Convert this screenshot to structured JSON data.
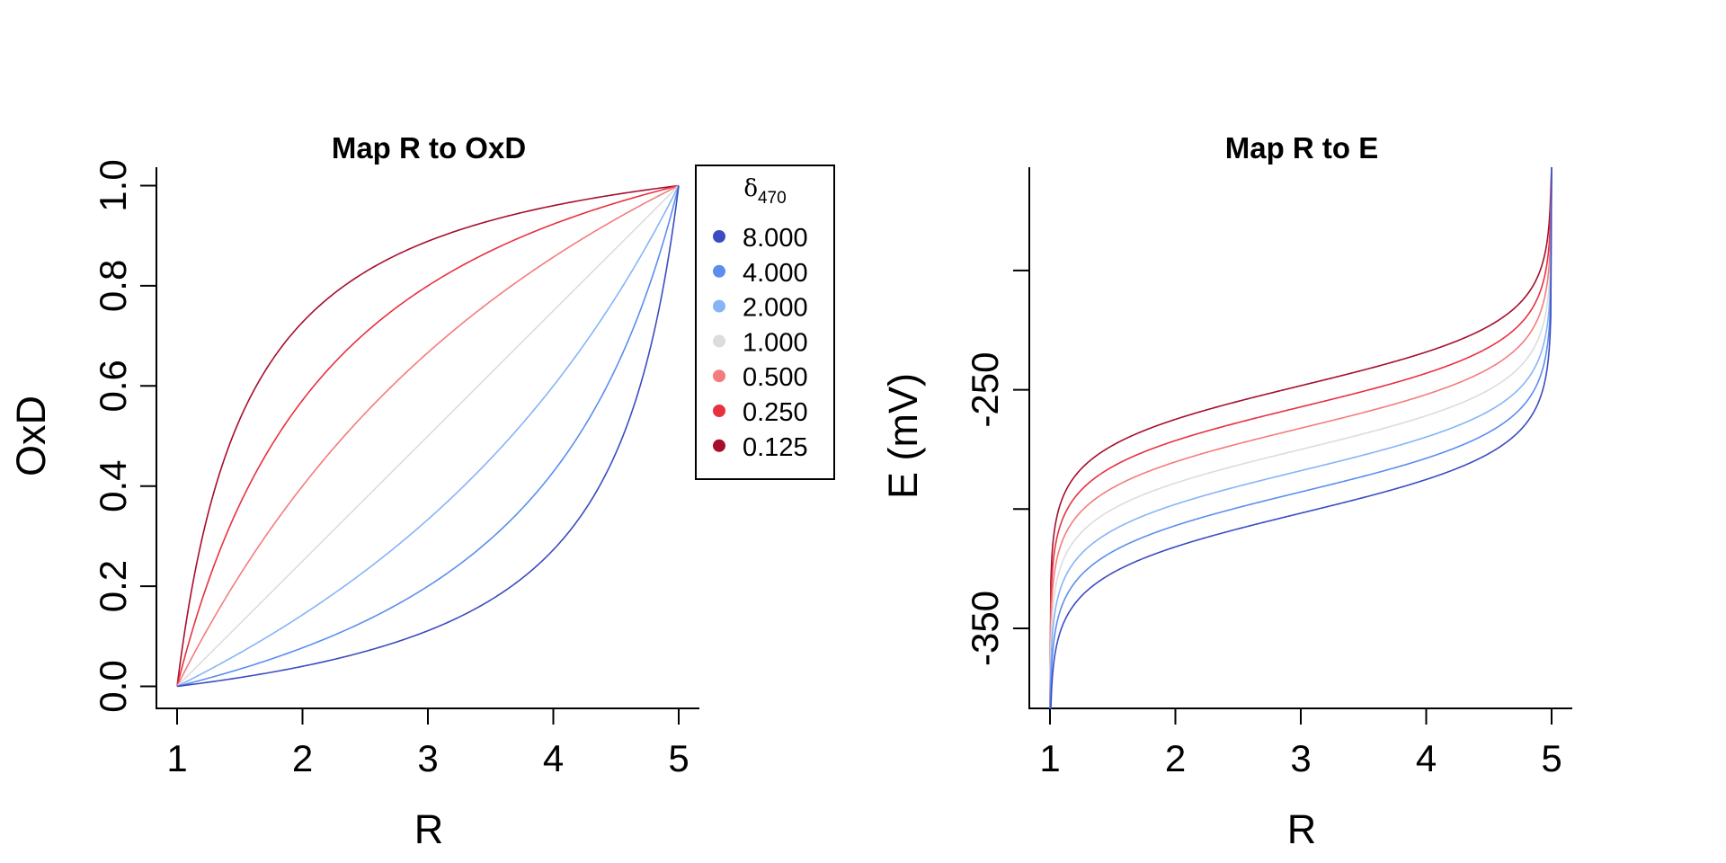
{
  "chart_data": [
    {
      "type": "line",
      "title": "Map R to OxD",
      "xlabel": "R",
      "ylabel": "OxD",
      "xlim": [
        1,
        5
      ],
      "ylim": [
        0,
        1
      ],
      "x_ticks": [
        "1",
        "2",
        "3",
        "4",
        "5"
      ],
      "y_ticks": [
        "0.0",
        "0.2",
        "0.4",
        "0.6",
        "0.8",
        "1.0"
      ],
      "model": "OxD = (R - 1) / ((R - 1) + delta470 * (5 - R))",
      "legend": {
        "title_symbol": "δ",
        "title_subscript": "470",
        "placement": "top-right, outside plot area",
        "entries": [
          "8.000",
          "4.000",
          "2.000",
          "1.000",
          "0.500",
          "0.250",
          "0.125"
        ]
      },
      "series": [
        {
          "name": "8.000",
          "delta": 8,
          "color": "#3b4cc0",
          "x": [
            1,
            1.5,
            2,
            2.5,
            3,
            3.5,
            4,
            4.5,
            5
          ],
          "values": [
            0,
            0.018,
            0.04,
            0.067,
            0.111,
            0.176,
            0.273,
            0.429,
            1
          ]
        },
        {
          "name": "4.000",
          "delta": 4,
          "color": "#5a8ef0",
          "x": [
            1,
            1.5,
            2,
            2.5,
            3,
            3.5,
            4,
            4.5,
            5
          ],
          "values": [
            0,
            0.036,
            0.077,
            0.13,
            0.2,
            0.3,
            0.429,
            0.6,
            1
          ]
        },
        {
          "name": "2.000",
          "delta": 2,
          "color": "#86b4f7",
          "x": [
            1,
            1.5,
            2,
            2.5,
            3,
            3.5,
            4,
            4.5,
            5
          ],
          "values": [
            0,
            0.071,
            0.143,
            0.231,
            0.333,
            0.462,
            0.6,
            0.778,
            1
          ]
        },
        {
          "name": "1.000",
          "delta": 1,
          "color": "#dddcdc",
          "x": [
            1,
            1.5,
            2,
            2.5,
            3,
            3.5,
            4,
            4.5,
            5
          ],
          "values": [
            0,
            0.125,
            0.25,
            0.375,
            0.5,
            0.625,
            0.75,
            0.875,
            1
          ]
        },
        {
          "name": "0.500",
          "delta": 0.5,
          "color": "#f47c7c",
          "x": [
            1,
            1.5,
            2,
            2.5,
            3,
            3.5,
            4,
            4.5,
            5
          ],
          "values": [
            0,
            0.222,
            0.4,
            0.545,
            0.667,
            0.769,
            0.857,
            0.933,
            1
          ]
        },
        {
          "name": "0.250",
          "delta": 0.25,
          "color": "#e8313f",
          "x": [
            1,
            1.5,
            2,
            2.5,
            3,
            3.5,
            4,
            4.5,
            5
          ],
          "values": [
            0,
            0.364,
            0.571,
            0.706,
            0.8,
            0.87,
            0.923,
            0.966,
            1
          ]
        },
        {
          "name": "0.125",
          "delta": 0.125,
          "color": "#a50f2d",
          "x": [
            1,
            1.5,
            2,
            2.5,
            3,
            3.5,
            4,
            4.5,
            5
          ],
          "values": [
            0,
            0.533,
            0.727,
            0.828,
            0.889,
            0.93,
            0.96,
            0.982,
            1
          ]
        }
      ]
    },
    {
      "type": "line",
      "title": "Map R to E",
      "xlabel": "R",
      "ylabel": "E (mV)",
      "xlim": [
        1,
        5
      ],
      "ylim": [
        -365,
        -207
      ],
      "x_ticks": [
        "1",
        "2",
        "3",
        "4",
        "5"
      ],
      "y_ticks": [
        "-350",
        "-250"
      ],
      "y_tick_values": [
        -350,
        -300,
        -250,
        -200
      ],
      "model": "E = -275 - 12.85 * ln((1 - OxD) / OxD)",
      "series": [
        {
          "name": "8.000",
          "color": "#3b4cc0",
          "x": [
            1.01,
            1.5,
            2,
            3,
            4,
            4.5,
            4.99
          ],
          "values": [
            -365,
            -326,
            -316,
            -301,
            -287,
            -274,
            -220
          ]
        },
        {
          "name": "4.000",
          "color": "#5a8ef0",
          "x": [
            1.01,
            1.5,
            2,
            3,
            4,
            4.5,
            4.99
          ],
          "values": [
            -359,
            -317,
            -307,
            -293,
            -279,
            -265,
            -212
          ]
        },
        {
          "name": "2.000",
          "color": "#86b4f7",
          "x": [
            1.01,
            1.5,
            2,
            3,
            4,
            4.5,
            4.99
          ],
          "values": [
            -350,
            -308,
            -298,
            -284,
            -270,
            -256,
            -203
          ]
        },
        {
          "name": "1.000",
          "color": "#dddcdc",
          "x": [
            1.01,
            1.5,
            2,
            3,
            4,
            4.5,
            4.99
          ],
          "values": [
            -341,
            -300,
            -289,
            -275,
            -261,
            -250,
            -195
          ]
        },
        {
          "name": "0.500",
          "color": "#f47c7c",
          "x": [
            1.01,
            1.5,
            2,
            3,
            4,
            4.5,
            4.99
          ],
          "values": [
            -332,
            -291,
            -280,
            -266,
            -252,
            -239,
            -186
          ]
        },
        {
          "name": "0.250",
          "color": "#e8313f",
          "x": [
            1.01,
            1.5,
            2,
            3,
            4,
            4.5,
            4.99
          ],
          "values": [
            -323,
            -282,
            -271,
            -257,
            -244,
            -230,
            -177
          ]
        },
        {
          "name": "0.125",
          "color": "#a50f2d",
          "x": [
            1.01,
            1.5,
            2,
            3,
            4,
            4.5,
            4.99
          ],
          "values": [
            -315,
            -273,
            -263,
            -248,
            -235,
            -221,
            -168
          ]
        }
      ]
    }
  ]
}
